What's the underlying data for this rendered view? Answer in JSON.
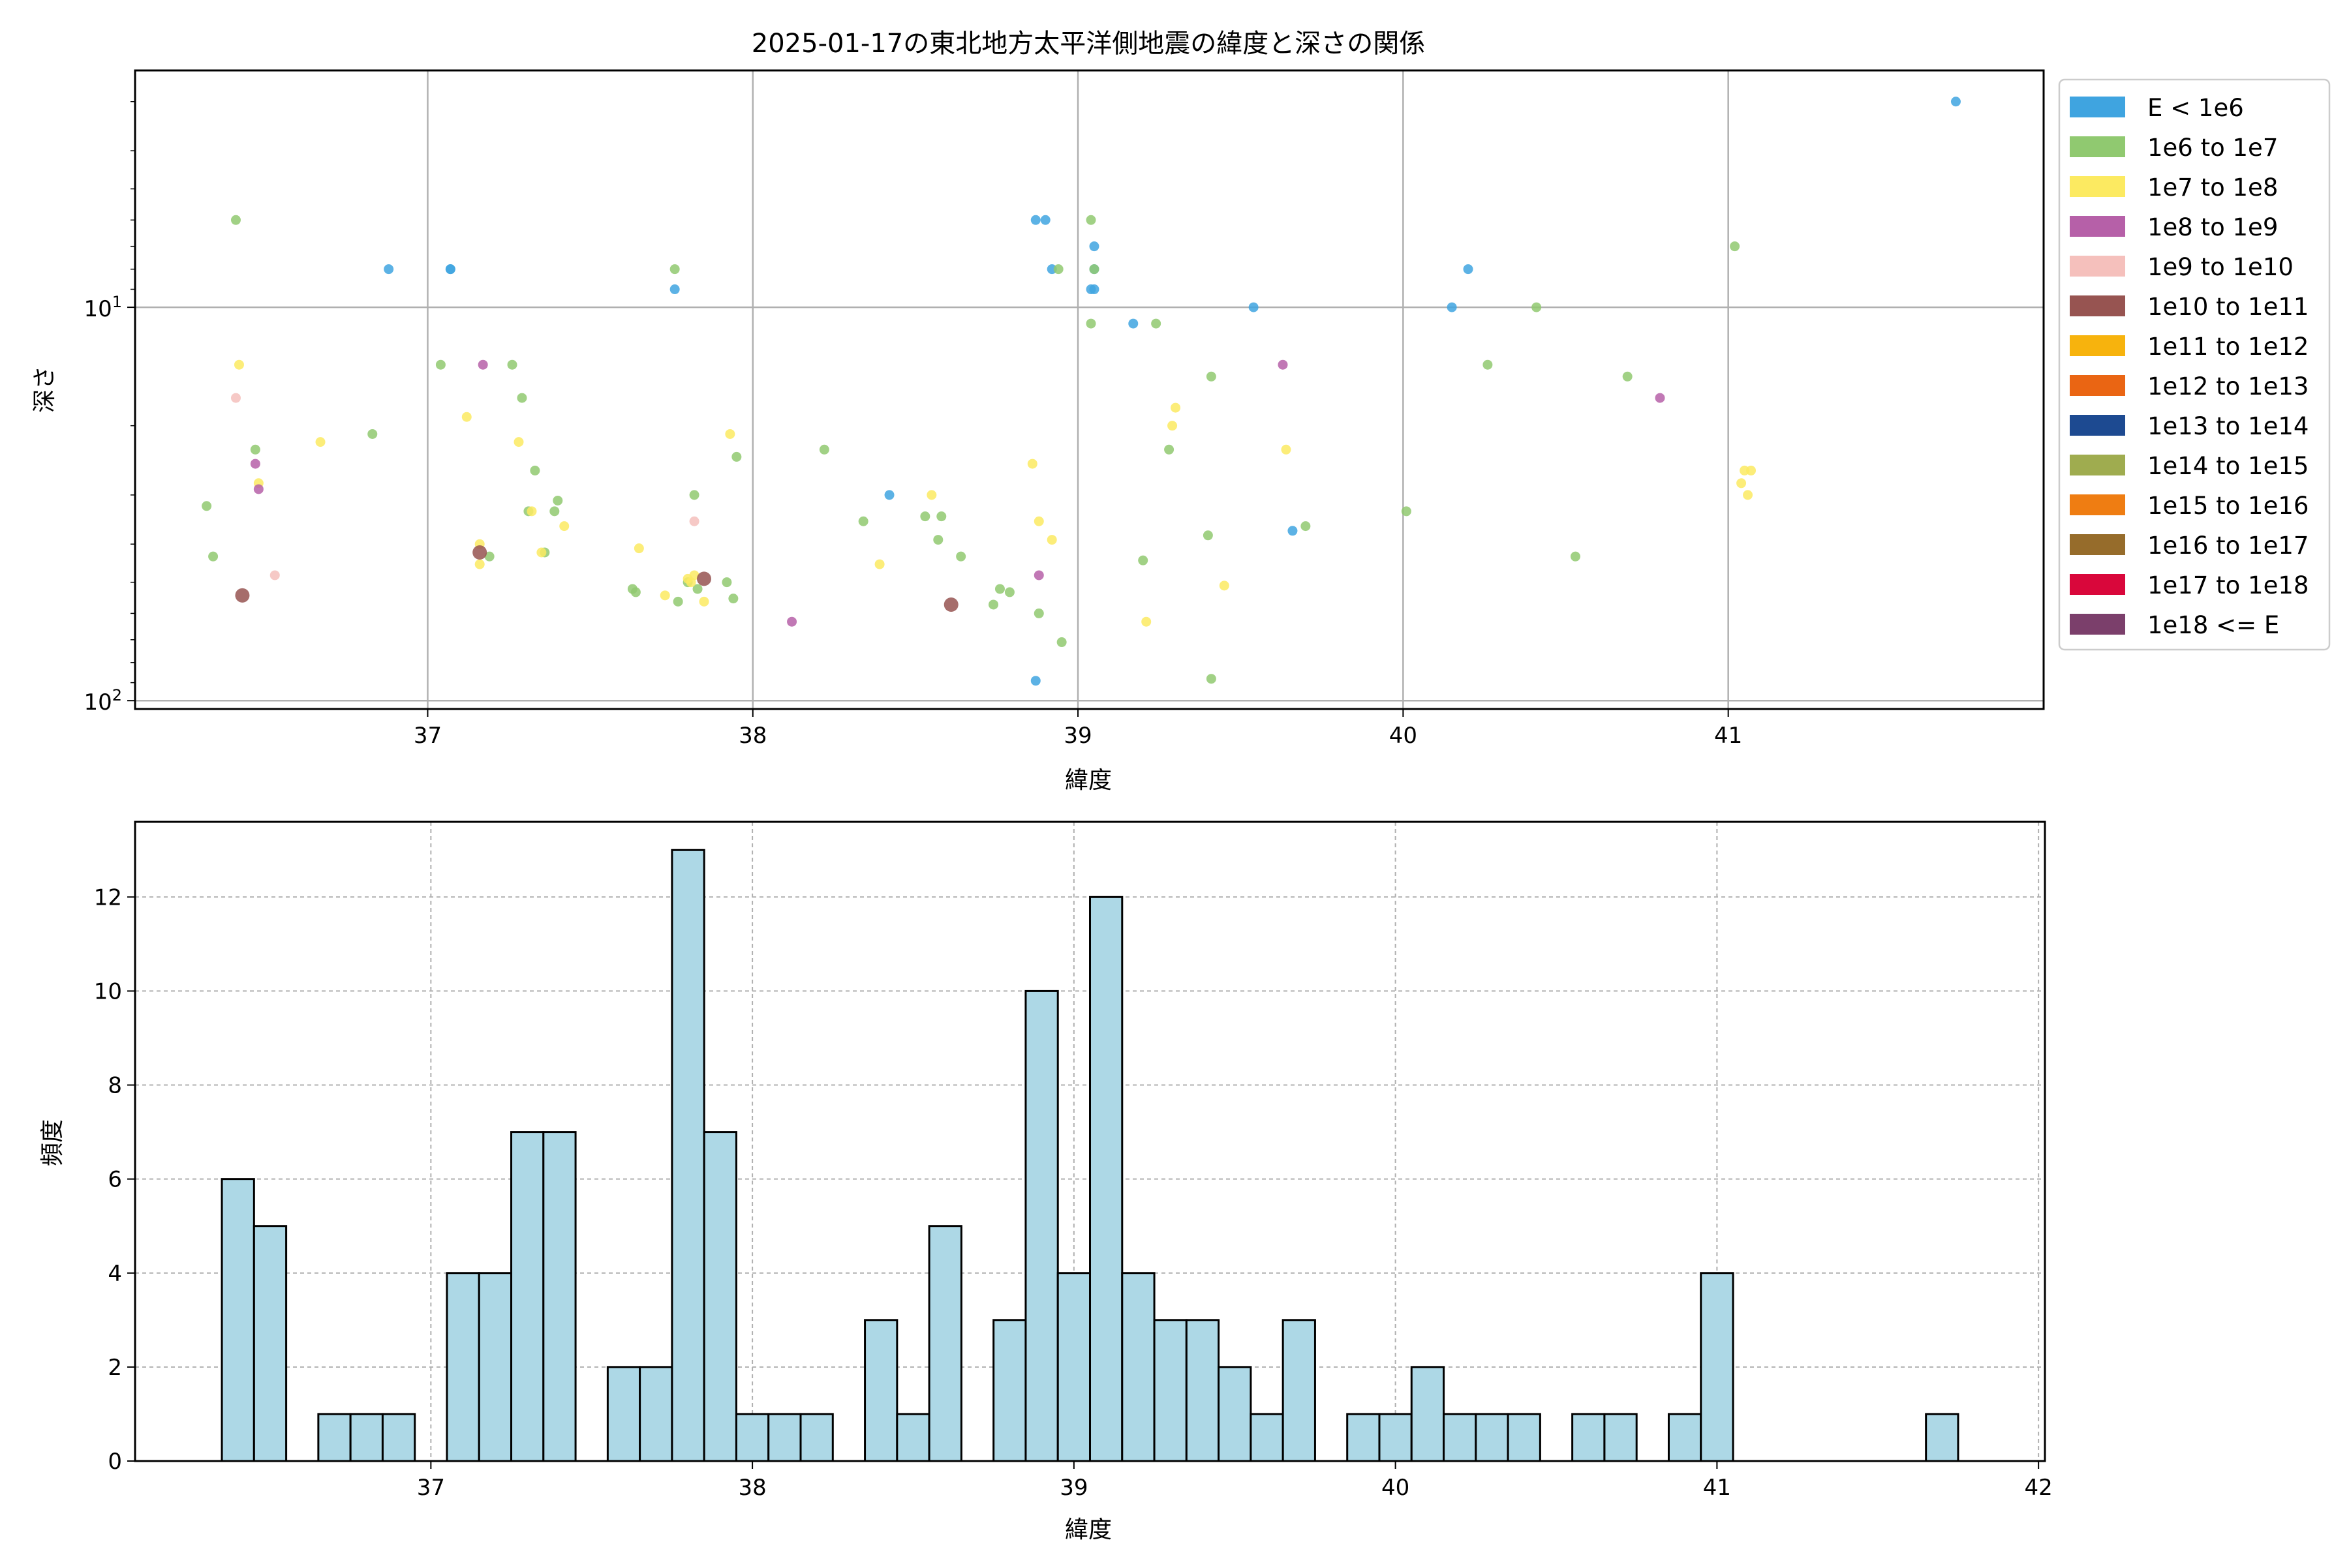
{
  "chart_data": [
    {
      "type": "scatter",
      "title": "2025-01-17の東北地方太平洋側地震の緯度と深さの関係",
      "xlabel": "緯度",
      "ylabel": "深さ",
      "xlim": [
        36.1,
        41.97
      ],
      "ylim": [
        105,
        2.5
      ],
      "yscale": "log",
      "y_inverted": true,
      "grid": true,
      "x_ticks": [
        37,
        38,
        39,
        40,
        41
      ],
      "y_ticks": [
        {
          "value": 10,
          "base": "10",
          "exp": "1"
        },
        {
          "value": 100,
          "base": "10",
          "exp": "2"
        }
      ],
      "legend_position": "outside-right",
      "legend": [
        {
          "label": "E < 1e6",
          "color": "#3fa4e0"
        },
        {
          "label": "1e6 to 1e7",
          "color": "#90c970"
        },
        {
          "label": "1e7 to 1e8",
          "color": "#fcea61"
        },
        {
          "label": "1e8 to 1e9",
          "color": "#b660a8"
        },
        {
          "label": "1e9 to 1e10",
          "color": "#f5c0bc"
        },
        {
          "label": "1e10 to 1e11",
          "color": "#975451"
        },
        {
          "label": "1e11 to 1e12",
          "color": "#f7b30d"
        },
        {
          "label": "1e12 to 1e13",
          "color": "#ea6513"
        },
        {
          "label": "1e13 to 1e14",
          "color": "#1d4a91"
        },
        {
          "label": "1e14 to 1e15",
          "color": "#9fac4f"
        },
        {
          "label": "1e15 to 1e16",
          "color": "#ef7d12"
        },
        {
          "label": "1e16 to 1e17",
          "color": "#966c2b"
        },
        {
          "label": "1e17 to 1e18",
          "color": "#d9073b"
        },
        {
          "label": "1e18 <= E",
          "color": "#7b3f6b"
        }
      ],
      "series": [
        {
          "name": "E < 1e6",
          "points": [
            [
              36.88,
              8
            ],
            [
              37.07,
              8
            ],
            [
              37.07,
              8
            ],
            [
              37.76,
              9
            ],
            [
              38.42,
              30
            ],
            [
              38.87,
              6
            ],
            [
              38.9,
              6
            ],
            [
              38.92,
              8
            ],
            [
              38.87,
              89
            ],
            [
              39.05,
              7
            ],
            [
              39.05,
              9
            ],
            [
              39.04,
              9
            ],
            [
              39.05,
              8
            ],
            [
              39.17,
              11
            ],
            [
              39.54,
              10
            ],
            [
              39.66,
              37
            ],
            [
              40.15,
              10
            ],
            [
              40.2,
              8
            ],
            [
              41.7,
              3
            ]
          ]
        },
        {
          "name": "1e6 to 1e7",
          "points": [
            [
              36.32,
              32
            ],
            [
              36.34,
              43
            ],
            [
              36.41,
              6
            ],
            [
              36.47,
              23
            ],
            [
              36.83,
              21
            ],
            [
              37.04,
              14
            ],
            [
              37.19,
              43
            ],
            [
              37.26,
              14
            ],
            [
              37.29,
              17
            ],
            [
              37.31,
              33
            ],
            [
              37.33,
              26
            ],
            [
              37.36,
              42
            ],
            [
              37.39,
              33
            ],
            [
              37.4,
              31
            ],
            [
              37.63,
              52
            ],
            [
              37.64,
              53
            ],
            [
              37.76,
              8
            ],
            [
              37.77,
              56
            ],
            [
              37.8,
              50
            ],
            [
              37.82,
              30
            ],
            [
              37.83,
              52
            ],
            [
              37.92,
              50
            ],
            [
              37.94,
              55
            ],
            [
              37.95,
              24
            ],
            [
              38.22,
              23
            ],
            [
              38.34,
              35
            ],
            [
              38.53,
              34
            ],
            [
              38.57,
              39
            ],
            [
              38.58,
              34
            ],
            [
              38.64,
              43
            ],
            [
              38.74,
              57
            ],
            [
              38.76,
              52
            ],
            [
              38.79,
              53
            ],
            [
              38.88,
              60
            ],
            [
              38.95,
              71
            ],
            [
              38.94,
              8
            ],
            [
              39.04,
              6
            ],
            [
              39.04,
              11
            ],
            [
              39.05,
              8
            ],
            [
              39.2,
              44
            ],
            [
              39.24,
              11
            ],
            [
              39.28,
              23
            ],
            [
              39.41,
              15
            ],
            [
              39.4,
              38
            ],
            [
              39.41,
              88
            ],
            [
              39.7,
              36
            ],
            [
              40.01,
              33
            ],
            [
              40.26,
              14
            ],
            [
              40.41,
              10
            ],
            [
              40.53,
              43
            ],
            [
              40.69,
              15
            ],
            [
              41.02,
              7
            ]
          ]
        },
        {
          "name": "1e7 to 1e8",
          "points": [
            [
              36.42,
              14
            ],
            [
              36.48,
              28
            ],
            [
              36.67,
              22
            ],
            [
              37.12,
              19
            ],
            [
              37.16,
              40
            ],
            [
              37.16,
              45
            ],
            [
              37.28,
              22
            ],
            [
              37.32,
              33
            ],
            [
              37.35,
              42
            ],
            [
              37.42,
              36
            ],
            [
              37.65,
              41
            ],
            [
              37.73,
              54
            ],
            [
              37.81,
              50
            ],
            [
              37.85,
              56
            ],
            [
              37.93,
              21
            ],
            [
              37.8,
              49
            ],
            [
              37.82,
              48
            ],
            [
              38.39,
              45
            ],
            [
              38.55,
              30
            ],
            [
              38.86,
              25
            ],
            [
              38.88,
              35
            ],
            [
              38.92,
              39
            ],
            [
              39.21,
              63
            ],
            [
              39.29,
              20
            ],
            [
              39.3,
              18
            ],
            [
              39.45,
              51
            ],
            [
              39.64,
              23
            ],
            [
              41.04,
              28
            ],
            [
              41.05,
              26
            ],
            [
              41.07,
              26
            ],
            [
              41.06,
              30
            ]
          ]
        },
        {
          "name": "1e8 to 1e9",
          "points": [
            [
              36.47,
              25
            ],
            [
              36.48,
              29
            ],
            [
              37.17,
              14
            ],
            [
              38.12,
              63
            ],
            [
              38.88,
              48
            ],
            [
              39.63,
              14
            ],
            [
              40.79,
              17
            ]
          ]
        },
        {
          "name": "1e9 to 1e10",
          "points": [
            [
              36.41,
              17
            ],
            [
              36.53,
              48
            ],
            [
              37.82,
              35
            ]
          ]
        },
        {
          "name": "1e10 to 1e11",
          "points": [
            [
              36.43,
              54
            ],
            [
              37.16,
              42
            ],
            [
              37.85,
              49
            ],
            [
              38.61,
              57
            ]
          ]
        }
      ]
    },
    {
      "type": "histogram",
      "xlabel": "緯度",
      "ylabel": "頻度",
      "xlim": [
        36.08,
        42.02
      ],
      "ylim": [
        0,
        13.6
      ],
      "grid": true,
      "bar_color": "#add8e6",
      "x_ticks": [
        37,
        38,
        39,
        40,
        41,
        42
      ],
      "y_ticks": [
        0,
        2,
        4,
        6,
        8,
        10,
        12
      ],
      "bin_start": 36.35,
      "bin_width": 0.1,
      "counts": [
        6,
        5,
        0,
        1,
        1,
        1,
        0,
        4,
        4,
        7,
        7,
        0,
        2,
        2,
        13,
        7,
        1,
        1,
        1,
        0,
        3,
        1,
        5,
        0,
        3,
        10,
        4,
        12,
        4,
        3,
        3,
        2,
        1,
        3,
        0,
        1,
        1,
        2,
        1,
        1,
        1,
        0,
        1,
        1,
        0,
        1,
        4,
        0,
        0,
        0,
        0,
        0,
        0,
        1
      ]
    }
  ]
}
